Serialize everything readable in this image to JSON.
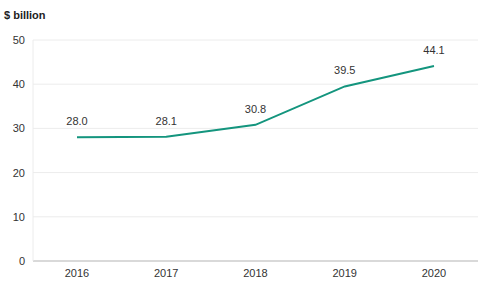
{
  "chart_data": {
    "type": "line",
    "y_label": "$ billion",
    "categories": [
      "2016",
      "2017",
      "2018",
      "2019",
      "2020"
    ],
    "values": [
      28.0,
      28.1,
      30.8,
      39.5,
      44.1
    ],
    "value_labels": [
      "28.0",
      "28.1",
      "30.8",
      "39.5",
      "44.1"
    ],
    "color": "#14957e",
    "ylim": [
      0,
      50
    ],
    "yticks": [
      0,
      10,
      20,
      30,
      40,
      50
    ],
    "grid": true,
    "data_labels": true
  }
}
